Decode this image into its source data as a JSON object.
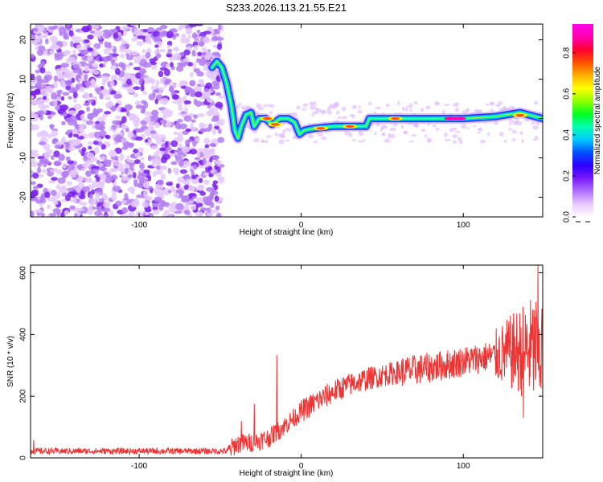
{
  "title": "S233.2026.113.21.55.E21",
  "chart_data": [
    {
      "type": "heatmap",
      "name": "spectrogram",
      "xlabel": "Height of straight line (km)",
      "ylabel": "Frequency (Hz)",
      "xlim": [
        -167,
        149
      ],
      "ylim": [
        -25,
        24
      ],
      "xticks": [
        -100,
        0,
        100
      ],
      "yticks": [
        -20,
        -10,
        0,
        10,
        20
      ],
      "noise_region_km": [
        -167,
        -52
      ],
      "ridge": [
        {
          "x": -55,
          "y": 13
        },
        {
          "x": -52,
          "y": 14.5
        },
        {
          "x": -49,
          "y": 13
        },
        {
          "x": -46,
          "y": 9
        },
        {
          "x": -43,
          "y": 3
        },
        {
          "x": -41,
          "y": -3
        },
        {
          "x": -39,
          "y": -5
        },
        {
          "x": -37,
          "y": -2
        },
        {
          "x": -34,
          "y": 1
        },
        {
          "x": -31,
          "y": 1.5
        },
        {
          "x": -29,
          "y": -2
        },
        {
          "x": -26,
          "y": 0
        },
        {
          "x": -22,
          "y": 0
        },
        {
          "x": -18,
          "y": -1.5
        },
        {
          "x": -13,
          "y": 0
        },
        {
          "x": -8,
          "y": 0
        },
        {
          "x": -4,
          "y": -1
        },
        {
          "x": -1,
          "y": -4
        },
        {
          "x": 2,
          "y": -3
        },
        {
          "x": 8,
          "y": -2.5
        },
        {
          "x": 20,
          "y": -2
        },
        {
          "x": 40,
          "y": -2
        },
        {
          "x": 42,
          "y": 0
        },
        {
          "x": 60,
          "y": 0
        },
        {
          "x": 80,
          "y": 0
        },
        {
          "x": 100,
          "y": 0
        },
        {
          "x": 120,
          "y": 0.5
        },
        {
          "x": 135,
          "y": 1.5
        },
        {
          "x": 149,
          "y": 0
        }
      ],
      "peaks": [
        {
          "x": 95,
          "y": 0
        },
        {
          "x": 30,
          "y": -2
        },
        {
          "x": 12,
          "y": -2.5
        },
        {
          "x": -16,
          "y": -1.5
        },
        {
          "x": -21,
          "y": 0
        },
        {
          "x": 135,
          "y": 0.8
        },
        {
          "x": 58,
          "y": 0
        }
      ],
      "colorbar": {
        "label": "Normalized spectral amplitude",
        "ticks": [
          0.0,
          0.2,
          0.4,
          0.6,
          0.8
        ],
        "tick_labels": [
          "0.0",
          "0.2",
          "0.4",
          "0.6",
          "0.8"
        ],
        "range": [
          0,
          0.94
        ],
        "colors": [
          "#ffffff",
          "#e8c8ff",
          "#b070ff",
          "#7a18ff",
          "#2b00ff",
          "#0050ff",
          "#00c8ff",
          "#00ffb0",
          "#00ff20",
          "#90ff00",
          "#ffff00",
          "#ffb000",
          "#ff5000",
          "#ff0030",
          "#ff00b0",
          "#ff00e6"
        ]
      }
    },
    {
      "type": "line",
      "name": "snr",
      "xlabel": "Height of straight line (km)",
      "ylabel": "SNR (10 * v/v)",
      "xlim": [
        -167,
        149
      ],
      "ylim": [
        0,
        625
      ],
      "xticks": [
        -100,
        0,
        100
      ],
      "yticks": [
        0,
        200,
        400,
        600
      ],
      "color": "#ee3333",
      "trend": [
        {
          "x": -167,
          "y": 22
        },
        {
          "x": -45,
          "y": 22
        },
        {
          "x": -40,
          "y": 45
        },
        {
          "x": -30,
          "y": 50
        },
        {
          "x": -20,
          "y": 65
        },
        {
          "x": -10,
          "y": 105
        },
        {
          "x": 0,
          "y": 150
        },
        {
          "x": 10,
          "y": 185
        },
        {
          "x": 20,
          "y": 215
        },
        {
          "x": 30,
          "y": 238
        },
        {
          "x": 40,
          "y": 255
        },
        {
          "x": 50,
          "y": 268
        },
        {
          "x": 60,
          "y": 278
        },
        {
          "x": 70,
          "y": 285
        },
        {
          "x": 80,
          "y": 293
        },
        {
          "x": 90,
          "y": 302
        },
        {
          "x": 100,
          "y": 313
        },
        {
          "x": 110,
          "y": 323
        },
        {
          "x": 120,
          "y": 333
        },
        {
          "x": 130,
          "y": 342
        },
        {
          "x": 140,
          "y": 350
        },
        {
          "x": 149,
          "y": 352
        }
      ],
      "spikes": [
        {
          "x": -165,
          "y": 58
        },
        {
          "x": -37,
          "y": 120
        },
        {
          "x": -29,
          "y": 175
        },
        {
          "x": -15,
          "y": 333
        },
        {
          "x": 137,
          "y": 130
        },
        {
          "x": 146,
          "y": 625
        }
      ]
    }
  ]
}
